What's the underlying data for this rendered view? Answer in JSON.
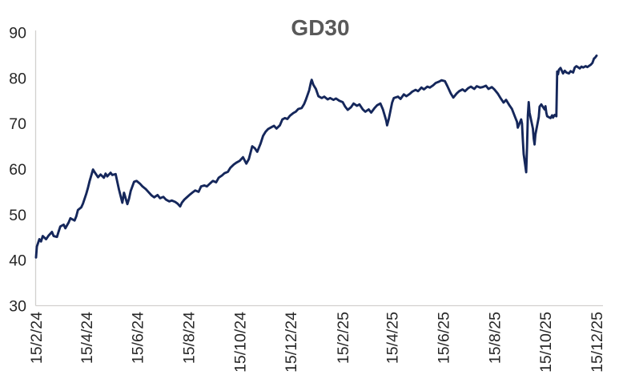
{
  "chart": {
    "title_color": "#595959",
    "axis_color": "#d2d0ce",
    "tick_label_color": "#262626",
    "line_color": "#15275b",
    "background": "#ffffff"
  },
  "chart_data": {
    "type": "line",
    "title": "GD30",
    "xlabel": "",
    "ylabel": "",
    "grid": false,
    "legend": "none",
    "ylim": [
      30,
      90
    ],
    "y_ticks": [
      30,
      40,
      50,
      60,
      70,
      80,
      90
    ],
    "x_unit": "days since 15/2/24",
    "x_range_days": [
      0,
      669
    ],
    "x_ticks": [
      {
        "label": "15/2/24",
        "day": 0
      },
      {
        "label": "15/4/24",
        "day": 60
      },
      {
        "label": "15/6/24",
        "day": 121
      },
      {
        "label": "15/8/24",
        "day": 182
      },
      {
        "label": "15/10/24",
        "day": 243
      },
      {
        "label": "15/12/24",
        "day": 304
      },
      {
        "label": "15/2/25",
        "day": 366
      },
      {
        "label": "15/4/25",
        "day": 425
      },
      {
        "label": "15/6/25",
        "day": 486
      },
      {
        "label": "15/8/25",
        "day": 547
      },
      {
        "label": "15/10/25",
        "day": 608
      },
      {
        "label": "15/12/25",
        "day": 669
      }
    ],
    "series": [
      {
        "name": "GD30",
        "color": "#15275b",
        "points": [
          [
            0,
            40.6
          ],
          [
            1,
            43.0
          ],
          [
            4,
            44.6
          ],
          [
            6,
            44.1
          ],
          [
            8,
            45.3
          ],
          [
            12,
            44.6
          ],
          [
            15,
            45.4
          ],
          [
            19,
            46.2
          ],
          [
            21,
            45.3
          ],
          [
            25,
            45.1
          ],
          [
            27,
            46.3
          ],
          [
            29,
            47.4
          ],
          [
            33,
            47.8
          ],
          [
            35,
            47.0
          ],
          [
            39,
            48.3
          ],
          [
            41,
            49.2
          ],
          [
            46,
            48.7
          ],
          [
            48,
            49.6
          ],
          [
            50,
            51.0
          ],
          [
            54,
            51.6
          ],
          [
            56,
            52.4
          ],
          [
            60,
            54.6
          ],
          [
            62,
            55.9
          ],
          [
            64,
            57.4
          ],
          [
            68,
            59.9
          ],
          [
            70,
            59.3
          ],
          [
            74,
            58.2
          ],
          [
            77,
            58.8
          ],
          [
            81,
            58.1
          ],
          [
            83,
            59.0
          ],
          [
            85,
            58.4
          ],
          [
            89,
            59.2
          ],
          [
            91,
            58.7
          ],
          [
            95,
            58.9
          ],
          [
            97,
            57.2
          ],
          [
            99,
            55.5
          ],
          [
            103,
            52.6
          ],
          [
            105,
            54.8
          ],
          [
            109,
            52.3
          ],
          [
            111,
            53.5
          ],
          [
            113,
            55.2
          ],
          [
            117,
            57.2
          ],
          [
            120,
            57.4
          ],
          [
            124,
            56.8
          ],
          [
            127,
            56.2
          ],
          [
            131,
            55.6
          ],
          [
            134,
            55.0
          ],
          [
            138,
            54.2
          ],
          [
            141,
            53.8
          ],
          [
            145,
            54.3
          ],
          [
            148,
            53.6
          ],
          [
            152,
            53.9
          ],
          [
            155,
            53.3
          ],
          [
            159,
            52.9
          ],
          [
            162,
            53.1
          ],
          [
            166,
            52.8
          ],
          [
            169,
            52.4
          ],
          [
            172,
            51.8
          ],
          [
            174,
            52.6
          ],
          [
            177,
            53.3
          ],
          [
            180,
            53.8
          ],
          [
            183,
            54.3
          ],
          [
            187,
            54.9
          ],
          [
            190,
            55.3
          ],
          [
            194,
            55.0
          ],
          [
            197,
            56.2
          ],
          [
            201,
            56.4
          ],
          [
            204,
            56.2
          ],
          [
            208,
            56.9
          ],
          [
            211,
            57.4
          ],
          [
            215,
            57.1
          ],
          [
            218,
            58.1
          ],
          [
            222,
            58.6
          ],
          [
            225,
            59.1
          ],
          [
            229,
            59.4
          ],
          [
            232,
            60.3
          ],
          [
            236,
            61.0
          ],
          [
            239,
            61.4
          ],
          [
            243,
            61.8
          ],
          [
            247,
            62.6
          ],
          [
            251,
            61.2
          ],
          [
            254,
            62.2
          ],
          [
            258,
            65.0
          ],
          [
            261,
            64.6
          ],
          [
            264,
            63.8
          ],
          [
            268,
            65.6
          ],
          [
            271,
            67.3
          ],
          [
            274,
            68.2
          ],
          [
            277,
            68.8
          ],
          [
            281,
            69.2
          ],
          [
            284,
            69.5
          ],
          [
            287,
            68.9
          ],
          [
            291,
            69.6
          ],
          [
            294,
            70.9
          ],
          [
            297,
            71.2
          ],
          [
            300,
            71.0
          ],
          [
            303,
            71.7
          ],
          [
            307,
            72.3
          ],
          [
            310,
            72.6
          ],
          [
            313,
            73.2
          ],
          [
            317,
            73.4
          ],
          [
            320,
            74.3
          ],
          [
            322,
            75.2
          ],
          [
            326,
            77.3
          ],
          [
            328,
            79.0
          ],
          [
            329,
            79.6
          ],
          [
            331,
            78.5
          ],
          [
            334,
            77.6
          ],
          [
            337,
            76.0
          ],
          [
            341,
            75.6
          ],
          [
            344,
            75.9
          ],
          [
            348,
            75.3
          ],
          [
            351,
            75.6
          ],
          [
            355,
            75.2
          ],
          [
            358,
            75.5
          ],
          [
            362,
            75.0
          ],
          [
            366,
            74.7
          ],
          [
            369,
            73.7
          ],
          [
            372,
            73.0
          ],
          [
            376,
            73.6
          ],
          [
            379,
            74.4
          ],
          [
            383,
            73.9
          ],
          [
            386,
            74.2
          ],
          [
            390,
            73.1
          ],
          [
            393,
            72.6
          ],
          [
            397,
            73.1
          ],
          [
            400,
            72.4
          ],
          [
            404,
            73.4
          ],
          [
            407,
            74.0
          ],
          [
            411,
            74.4
          ],
          [
            414,
            73.1
          ],
          [
            418,
            70.6
          ],
          [
            419,
            69.6
          ],
          [
            421,
            71.0
          ],
          [
            425,
            74.6
          ],
          [
            427,
            75.6
          ],
          [
            432,
            75.9
          ],
          [
            435,
            75.4
          ],
          [
            439,
            76.4
          ],
          [
            442,
            76.0
          ],
          [
            446,
            76.5
          ],
          [
            449,
            77.0
          ],
          [
            453,
            77.4
          ],
          [
            456,
            77.1
          ],
          [
            460,
            77.9
          ],
          [
            463,
            77.5
          ],
          [
            467,
            78.1
          ],
          [
            470,
            77.9
          ],
          [
            474,
            78.4
          ],
          [
            477,
            78.9
          ],
          [
            481,
            79.2
          ],
          [
            484,
            79.5
          ],
          [
            488,
            79.3
          ],
          [
            491,
            78.2
          ],
          [
            495,
            76.6
          ],
          [
            498,
            75.7
          ],
          [
            502,
            76.6
          ],
          [
            505,
            77.1
          ],
          [
            509,
            77.5
          ],
          [
            512,
            77.1
          ],
          [
            516,
            77.8
          ],
          [
            519,
            78.1
          ],
          [
            523,
            77.6
          ],
          [
            526,
            78.2
          ],
          [
            530,
            77.9
          ],
          [
            533,
            78.0
          ],
          [
            537,
            78.3
          ],
          [
            540,
            77.6
          ],
          [
            544,
            78.0
          ],
          [
            547,
            77.5
          ],
          [
            551,
            76.6
          ],
          [
            554,
            75.7
          ],
          [
            558,
            74.6
          ],
          [
            561,
            75.2
          ],
          [
            565,
            74.0
          ],
          [
            568,
            73.2
          ],
          [
            572,
            71.3
          ],
          [
            574,
            70.4
          ],
          [
            575,
            69.1
          ],
          [
            579,
            70.9
          ],
          [
            580,
            70.0
          ],
          [
            581,
            66.4
          ],
          [
            582,
            63.3
          ],
          [
            585,
            59.3
          ],
          [
            586,
            64.8
          ],
          [
            587,
            71.8
          ],
          [
            588,
            74.7
          ],
          [
            589,
            72.4
          ],
          [
            593,
            68.9
          ],
          [
            594,
            66.7
          ],
          [
            595,
            65.4
          ],
          [
            596,
            67.6
          ],
          [
            600,
            71.4
          ],
          [
            601,
            73.7
          ],
          [
            603,
            74.2
          ],
          [
            607,
            73.1
          ],
          [
            608,
            73.8
          ],
          [
            609,
            72.4
          ],
          [
            610,
            71.6
          ],
          [
            614,
            71.2
          ],
          [
            616,
            71.8
          ],
          [
            617,
            71.3
          ],
          [
            619,
            71.9
          ],
          [
            621,
            71.6
          ],
          [
            622,
            81.4
          ],
          [
            623,
            80.8
          ],
          [
            624,
            81.8
          ],
          [
            626,
            82.2
          ],
          [
            628,
            81.4
          ],
          [
            629,
            81.0
          ],
          [
            631,
            81.6
          ],
          [
            633,
            81.2
          ],
          [
            636,
            81.0
          ],
          [
            638,
            81.5
          ],
          [
            641,
            81.2
          ],
          [
            643,
            82.3
          ],
          [
            645,
            82.6
          ],
          [
            649,
            82.1
          ],
          [
            651,
            82.5
          ],
          [
            653,
            82.3
          ],
          [
            656,
            82.6
          ],
          [
            658,
            82.4
          ],
          [
            662,
            82.9
          ],
          [
            664,
            83.3
          ],
          [
            666,
            84.3
          ],
          [
            667,
            84.4
          ],
          [
            669,
            84.9
          ]
        ]
      }
    ]
  }
}
